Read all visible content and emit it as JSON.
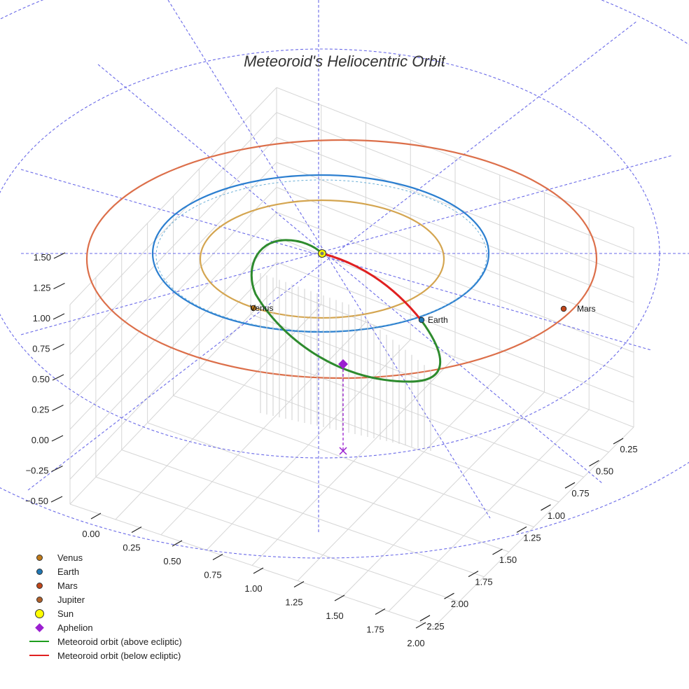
{
  "chart_data": {
    "type": "3d-orbit",
    "title": "Meteoroid's Heliocentric Orbit",
    "z_ticks": [
      "1.50",
      "1.25",
      "1.00",
      "0.75",
      "0.50",
      "0.25",
      "0.00",
      "−0.25",
      "−0.50"
    ],
    "x_ticks": [
      "0.00",
      "0.25",
      "0.50",
      "0.75",
      "1.00",
      "1.25",
      "1.50",
      "1.75",
      "2.00"
    ],
    "y_ticks": [
      "0.25",
      "0.50",
      "0.75",
      "1.00",
      "1.25",
      "1.50",
      "1.75",
      "2.00",
      "2.25"
    ],
    "planets": [
      {
        "name": "Venus",
        "color": "#c07a1a",
        "orbit_color": "#d4a550",
        "label": "Venus"
      },
      {
        "name": "Earth",
        "color": "#1f77b4",
        "orbit_color": "#2c7fd0",
        "label": "Earth"
      },
      {
        "name": "Mars",
        "color": "#c0461a",
        "orbit_color": "#dc6f4a",
        "label": "Mars"
      }
    ],
    "sun": {
      "name": "Sun",
      "color": "#ffff00"
    },
    "aphelion": {
      "name": "Aphelion",
      "color": "#9b1fd0"
    },
    "meteoroid_above_color": "#2e8b2e",
    "meteoroid_below_color": "#e02020",
    "legend": [
      {
        "label": "Venus",
        "kind": "dot",
        "color": "#c07a1a"
      },
      {
        "label": "Earth",
        "kind": "dot",
        "color": "#1f77b4"
      },
      {
        "label": "Mars",
        "kind": "dot",
        "color": "#c0461a"
      },
      {
        "label": "Jupiter",
        "kind": "dot",
        "color": "#b0602a"
      },
      {
        "label": "Sun",
        "kind": "sun",
        "color": "#ffff00"
      },
      {
        "label": "Aphelion",
        "kind": "diamond",
        "color": "#9b1fd0"
      },
      {
        "label": "Meteoroid orbit (above ecliptic)",
        "kind": "line",
        "color": "#1e9e1e"
      },
      {
        "label": "Meteoroid orbit (below ecliptic)",
        "kind": "line",
        "color": "#e02020"
      }
    ]
  }
}
